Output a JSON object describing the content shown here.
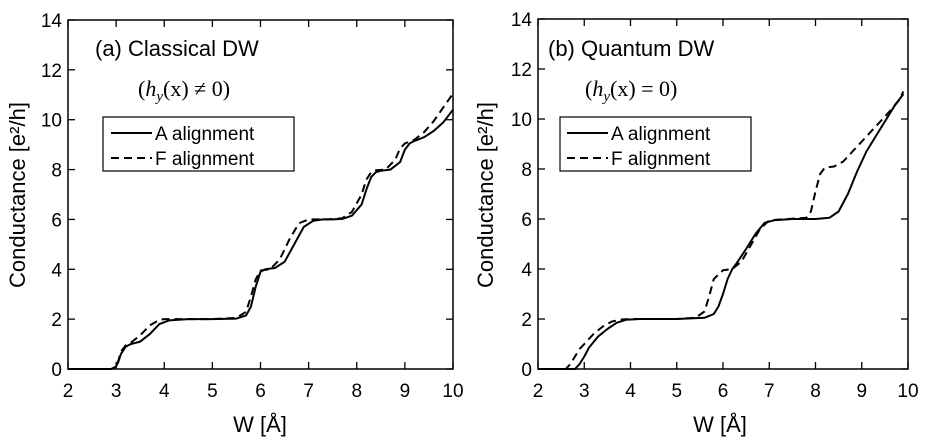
{
  "chart_data": [
    {
      "type": "line",
      "title": "(a) Classical DW",
      "subtitle": "(h_y(x) ≠ 0)",
      "subtitle_parts": {
        "h": "h",
        "sub": "y",
        "rest": "(x) ≠ 0)"
      },
      "xlabel": "W [Å]",
      "ylabel": "Conductance [e²/h]",
      "xlim": [
        2,
        10
      ],
      "ylim": [
        0,
        14
      ],
      "xticks": [
        2,
        3,
        4,
        5,
        6,
        7,
        8,
        9,
        10
      ],
      "yticks": [
        0,
        2,
        4,
        6,
        8,
        10,
        12,
        14
      ],
      "legend": "upper-left",
      "grid": false,
      "series": [
        {
          "name": "A alignment",
          "style": "solid",
          "x": [
            2.0,
            2.9,
            3.0,
            3.05,
            3.1,
            3.2,
            3.3,
            3.5,
            3.7,
            3.9,
            4.1,
            4.5,
            5.0,
            5.5,
            5.7,
            5.8,
            5.9,
            6.0,
            6.1,
            6.3,
            6.5,
            6.7,
            6.9,
            7.1,
            7.3,
            7.5,
            7.7,
            7.9,
            8.1,
            8.2,
            8.3,
            8.4,
            8.5,
            8.7,
            8.9,
            9.0,
            9.1,
            9.2,
            9.4,
            9.6,
            9.8,
            10.0
          ],
          "y": [
            0,
            0,
            0.1,
            0.3,
            0.6,
            0.9,
            1.0,
            1.1,
            1.4,
            1.8,
            1.95,
            2.0,
            2.0,
            2.02,
            2.15,
            2.5,
            3.3,
            3.9,
            4.0,
            4.05,
            4.3,
            5.0,
            5.7,
            5.95,
            6.0,
            6.0,
            6.02,
            6.15,
            6.6,
            7.2,
            7.7,
            7.9,
            7.95,
            8.0,
            8.3,
            8.8,
            9.05,
            9.15,
            9.3,
            9.55,
            9.9,
            10.4
          ]
        },
        {
          "name": "F alignment",
          "style": "dashed",
          "x": [
            2.0,
            2.9,
            3.0,
            3.05,
            3.1,
            3.2,
            3.3,
            3.5,
            3.7,
            3.9,
            4.0,
            4.5,
            5.0,
            5.5,
            5.7,
            5.8,
            5.9,
            6.0,
            6.2,
            6.4,
            6.6,
            6.8,
            7.0,
            7.2,
            7.4,
            7.7,
            7.9,
            8.1,
            8.2,
            8.3,
            8.4,
            8.6,
            8.8,
            8.9,
            9.0,
            9.2,
            9.4,
            9.6,
            9.8,
            10.0
          ],
          "y": [
            0,
            0,
            0.1,
            0.35,
            0.7,
            0.95,
            1.05,
            1.35,
            1.75,
            1.97,
            2.0,
            2.0,
            2.0,
            2.05,
            2.3,
            2.9,
            3.6,
            3.95,
            4.0,
            4.4,
            5.2,
            5.85,
            6.0,
            6.0,
            6.0,
            6.05,
            6.3,
            7.0,
            7.6,
            7.9,
            7.97,
            8.0,
            8.4,
            8.85,
            9.05,
            9.2,
            9.5,
            9.95,
            10.5,
            11.05
          ]
        }
      ]
    },
    {
      "type": "line",
      "title": "(b) Quantum DW",
      "subtitle": "(h_y(x) = 0)",
      "subtitle_parts": {
        "h": "h",
        "sub": "y",
        "rest": "(x) = 0)"
      },
      "xlabel": "W [Å]",
      "ylabel": "Conductance [e²/h]",
      "xlim": [
        2,
        10
      ],
      "ylim": [
        0,
        14
      ],
      "xticks": [
        2,
        3,
        4,
        5,
        6,
        7,
        8,
        9,
        10
      ],
      "yticks": [
        0,
        2,
        4,
        6,
        8,
        10,
        12,
        14
      ],
      "legend": "upper-left",
      "grid": false,
      "series": [
        {
          "name": "A alignment",
          "style": "solid",
          "x": [
            2.0,
            2.8,
            2.9,
            3.0,
            3.1,
            3.3,
            3.5,
            3.7,
            3.9,
            4.2,
            5.0,
            5.6,
            5.8,
            5.9,
            6.0,
            6.1,
            6.2,
            6.3,
            6.5,
            6.7,
            6.9,
            7.1,
            7.5,
            8.0,
            8.3,
            8.5,
            8.7,
            8.9,
            9.1,
            9.3,
            9.5,
            9.7,
            9.9
          ],
          "y": [
            0,
            0,
            0.2,
            0.5,
            0.85,
            1.3,
            1.6,
            1.85,
            1.97,
            2.0,
            2.0,
            2.05,
            2.2,
            2.5,
            3.0,
            3.6,
            4.0,
            4.25,
            4.8,
            5.4,
            5.85,
            5.95,
            6.0,
            6.0,
            6.05,
            6.3,
            7.0,
            7.9,
            8.7,
            9.3,
            9.9,
            10.5,
            11.0
          ]
        },
        {
          "name": "F alignment",
          "style": "dashed",
          "x": [
            2.0,
            2.6,
            2.7,
            2.8,
            2.9,
            3.0,
            3.2,
            3.4,
            3.6,
            3.8,
            4.0,
            5.0,
            5.4,
            5.6,
            5.7,
            5.8,
            6.0,
            6.2,
            6.4,
            6.6,
            6.8,
            7.0,
            7.4,
            7.8,
            7.9,
            8.0,
            8.1,
            8.2,
            8.4,
            8.6,
            8.8,
            9.0,
            9.2,
            9.4,
            9.6,
            9.8,
            9.9
          ],
          "y": [
            0,
            0,
            0.2,
            0.5,
            0.8,
            1.0,
            1.4,
            1.7,
            1.9,
            1.98,
            2.0,
            2.0,
            2.05,
            2.3,
            2.9,
            3.6,
            3.95,
            4.0,
            4.3,
            4.95,
            5.6,
            5.95,
            6.0,
            6.05,
            6.3,
            7.1,
            7.8,
            8.05,
            8.1,
            8.3,
            8.7,
            9.1,
            9.5,
            9.9,
            10.3,
            10.75,
            11.1
          ]
        }
      ]
    }
  ]
}
